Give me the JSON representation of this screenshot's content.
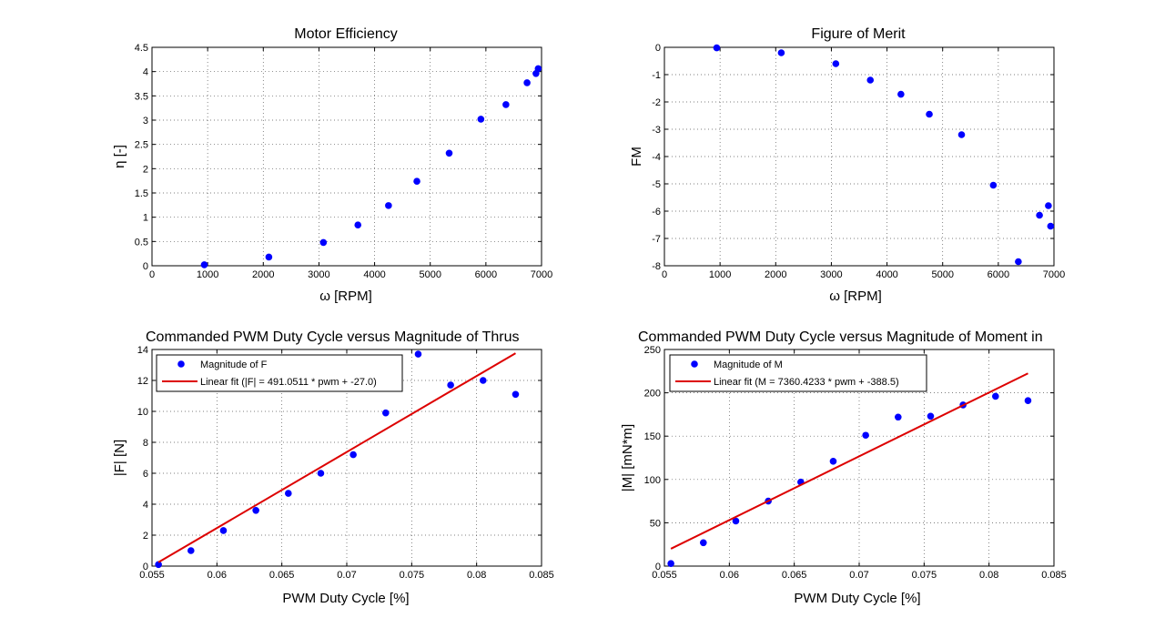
{
  "colors": {
    "marker": "#0000ff",
    "fit_line": "#dd0000",
    "grid": "#555555",
    "axes": "#000000",
    "background": "#ffffff"
  },
  "chart_data": [
    {
      "type": "scatter",
      "title": "Motor Efficiency",
      "xlabel": "ω [RPM]",
      "ylabel": "η [-]",
      "xlim": [
        0,
        7000
      ],
      "ylim": [
        0,
        4.5
      ],
      "xticks": [
        0,
        1000,
        2000,
        3000,
        4000,
        5000,
        6000,
        7000
      ],
      "yticks": [
        0,
        0.5,
        1,
        1.5,
        2,
        2.5,
        3,
        3.5,
        4,
        4.5
      ],
      "grid": true,
      "series": [
        {
          "x": [
            940,
            2100,
            3080,
            3700,
            4250,
            4760,
            5340,
            5910,
            6360,
            6740,
            6900,
            6940
          ],
          "y": [
            0.02,
            0.18,
            0.48,
            0.84,
            1.24,
            1.74,
            2.32,
            3.02,
            3.32,
            3.77,
            3.96,
            4.06
          ]
        }
      ]
    },
    {
      "type": "scatter",
      "title": "Figure of Merit",
      "xlabel": "ω [RPM]",
      "ylabel": "FM",
      "xlim": [
        0,
        7000
      ],
      "ylim": [
        -8,
        0
      ],
      "xticks": [
        0,
        1000,
        2000,
        3000,
        4000,
        5000,
        6000,
        7000
      ],
      "yticks": [
        -8,
        -7,
        -6,
        -5,
        -4,
        -3,
        -2,
        -1,
        0
      ],
      "grid": true,
      "series": [
        {
          "x": [
            940,
            2100,
            3080,
            3700,
            4250,
            4760,
            5340,
            5910,
            6360,
            6740,
            6900,
            6940
          ],
          "y": [
            -0.02,
            -0.2,
            -0.6,
            -1.2,
            -1.72,
            -2.45,
            -3.2,
            -5.05,
            -7.85,
            -6.15,
            -5.8,
            -6.55
          ]
        }
      ]
    },
    {
      "type": "scatter",
      "title": "Commanded PWM Duty Cycle versus Magnitude of Thrus",
      "xlabel": "PWM Duty Cycle [%]",
      "ylabel": "|F| [N]",
      "xlim": [
        0.055,
        0.085
      ],
      "ylim": [
        0,
        14
      ],
      "xticks": [
        0.055,
        0.06,
        0.065,
        0.07,
        0.075,
        0.08,
        0.085
      ],
      "yticks": [
        0,
        2,
        4,
        6,
        8,
        10,
        12,
        14
      ],
      "grid": true,
      "legend": {
        "placement": "top-left",
        "entries": [
          "Magnitude of F",
          "Linear fit (|F| = 491.0511 * pwm + -27.0)"
        ]
      },
      "series": [
        {
          "name": "Magnitude of F",
          "kind": "points",
          "x": [
            0.0555,
            0.058,
            0.0605,
            0.063,
            0.0655,
            0.068,
            0.0705,
            0.073,
            0.0755,
            0.078,
            0.0805,
            0.083
          ],
          "y": [
            0.1,
            1.0,
            2.3,
            3.6,
            4.7,
            6.0,
            7.2,
            9.9,
            13.7,
            11.7,
            12.0,
            11.1
          ]
        },
        {
          "name": "Linear fit (|F| = 491.0511 * pwm + -27.0)",
          "kind": "line",
          "x": [
            0.0555,
            0.083
          ],
          "y": [
            0.25,
            13.76
          ]
        }
      ]
    },
    {
      "type": "scatter",
      "title": "Commanded PWM Duty Cycle versus Magnitude of Moment in",
      "xlabel": "PWM Duty Cycle [%]",
      "ylabel": "|M| [mN*m]",
      "xlim": [
        0.055,
        0.085
      ],
      "ylim": [
        0,
        250
      ],
      "xticks": [
        0.055,
        0.06,
        0.065,
        0.07,
        0.075,
        0.08,
        0.085
      ],
      "yticks": [
        0,
        50,
        100,
        150,
        200,
        250
      ],
      "grid": true,
      "legend": {
        "placement": "top-left",
        "entries": [
          "Magnitude of M",
          "Linear fit (M = 7360.4233 * pwm + -388.5)"
        ]
      },
      "series": [
        {
          "name": "Magnitude of M",
          "kind": "points",
          "x": [
            0.0555,
            0.058,
            0.0605,
            0.063,
            0.0655,
            0.068,
            0.0705,
            0.073,
            0.0755,
            0.078,
            0.0805,
            0.083
          ],
          "y": [
            3,
            27,
            52,
            75,
            97,
            121,
            151,
            172,
            173,
            186,
            196,
            191
          ]
        },
        {
          "name": "Linear fit (M = 7360.4233 * pwm + -388.5)",
          "kind": "line",
          "x": [
            0.0555,
            0.083
          ],
          "y": [
            20,
            222.4
          ]
        }
      ]
    }
  ]
}
